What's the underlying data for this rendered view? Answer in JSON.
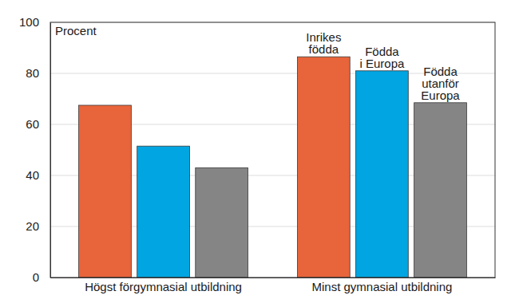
{
  "chart_data": {
    "type": "bar",
    "ylabel": "Procent",
    "categories": [
      "Högst förgymnasial utbildning",
      "Minst gymnasial utbildning"
    ],
    "series": [
      {
        "name": "Inrikes födda",
        "color": "#e8643a",
        "values": [
          67.5,
          86.5
        ]
      },
      {
        "name": "Födda i Europa",
        "color": "#00a5e1",
        "values": [
          51.5,
          81
        ]
      },
      {
        "name": "Födda utanför Europa",
        "color": "#858585",
        "values": [
          43,
          68.5
        ]
      }
    ],
    "ylim": [
      0,
      100
    ],
    "yticks": [
      0,
      20,
      40,
      60,
      80,
      100
    ],
    "grid": true
  }
}
